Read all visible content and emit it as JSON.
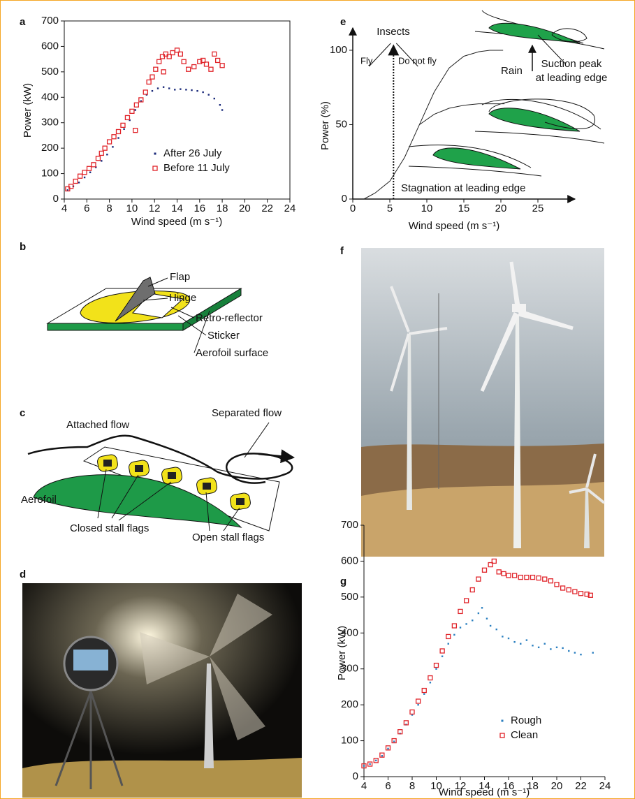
{
  "chart_data": [
    {
      "type": "scatter",
      "panel_label": "a",
      "x_label": "Wind speed (m s⁻¹)",
      "y_label": "Power (kW)",
      "xlim": [
        4,
        24
      ],
      "ylim": [
        0,
        700
      ],
      "xticks": [
        4,
        6,
        8,
        10,
        12,
        14,
        16,
        18,
        20,
        22,
        24
      ],
      "yticks": [
        0,
        100,
        200,
        300,
        400,
        500,
        600,
        700
      ],
      "series": [
        {
          "name": "After 26 July",
          "color": "#1a2a7a",
          "marker": "dot",
          "x": [
            4.3,
            4.8,
            5.3,
            5.8,
            6.3,
            6.8,
            7.3,
            7.8,
            8.3,
            8.8,
            9.3,
            9.8,
            10.3,
            10.8,
            11.3,
            11.8,
            12.3,
            12.8,
            13.3,
            13.8,
            14.3,
            14.8,
            15.3,
            15.8,
            16.3,
            16.8,
            17.3,
            17.8,
            18
          ],
          "values": [
            35,
            50,
            65,
            85,
            105,
            125,
            150,
            175,
            205,
            240,
            275,
            310,
            350,
            385,
            410,
            425,
            435,
            440,
            435,
            430,
            432,
            430,
            428,
            425,
            420,
            410,
            395,
            370,
            350
          ]
        },
        {
          "name": "Before 11 July",
          "color": "#e0242a",
          "marker": "square",
          "x": [
            4.3,
            4.6,
            5,
            5.4,
            5.8,
            6.2,
            6.6,
            7,
            7.3,
            7.6,
            8,
            8.4,
            8.8,
            9.2,
            9.6,
            10,
            10.3,
            10.4,
            10.8,
            11.2,
            11.5,
            11.8,
            12.1,
            12.4,
            12.7,
            12.8,
            13,
            13.3,
            13.6,
            14,
            14.3,
            14.6,
            15,
            15.5,
            16,
            16.3,
            16.6,
            17,
            17.3,
            17.6,
            18
          ],
          "values": [
            40,
            50,
            70,
            90,
            105,
            120,
            135,
            160,
            180,
            200,
            225,
            245,
            265,
            290,
            320,
            345,
            270,
            370,
            390,
            420,
            460,
            480,
            510,
            540,
            560,
            500,
            570,
            560,
            575,
            585,
            570,
            540,
            510,
            520,
            540,
            545,
            530,
            510,
            570,
            545,
            525
          ]
        }
      ]
    },
    {
      "type": "line",
      "panel_label": "e",
      "x_label": "Wind speed (m s⁻¹)",
      "y_label": "Power (%)",
      "xlim": [
        0,
        30
      ],
      "ylim": [
        0,
        115
      ],
      "xticks": [
        0,
        5,
        10,
        15,
        20,
        25
      ],
      "yticks": [
        0,
        50,
        100
      ],
      "series": [
        {
          "color": "#222222",
          "x": [
            1.5,
            3,
            5,
            7,
            9,
            11,
            13,
            15,
            17,
            18.5,
            20.3
          ],
          "values": [
            0,
            4,
            12,
            28,
            50,
            72,
            88,
            96,
            99,
            100,
            100
          ]
        },
        {
          "color": "#222222",
          "x": [
            9,
            11,
            13,
            15,
            17,
            19,
            20.5
          ],
          "values": [
            50,
            57,
            61,
            63,
            64,
            64,
            64
          ]
        }
      ],
      "insects_x": 5.5,
      "annotations": [
        "Insects",
        "Fly",
        "Do not fly",
        "Rain",
        "Suction peak",
        "at leading edge",
        "Stagnation at leading edge"
      ]
    },
    {
      "type": "scatter",
      "panel_label": "g",
      "x_label": "Wind speed (m s⁻¹)",
      "y_label": "Power (kW)",
      "xlim": [
        4,
        24
      ],
      "ylim": [
        0,
        700
      ],
      "xticks": [
        4,
        6,
        8,
        10,
        12,
        14,
        16,
        18,
        20,
        22,
        24
      ],
      "yticks": [
        0,
        100,
        200,
        300,
        400,
        500,
        600,
        700
      ],
      "series": [
        {
          "name": "Rough",
          "color": "#2a7fc0",
          "marker": "dot",
          "x": [
            4,
            4.5,
            5,
            5.5,
            6,
            6.5,
            7,
            7.5,
            8,
            8.5,
            9,
            9.5,
            10,
            10.5,
            11,
            11.5,
            12,
            12.5,
            13,
            13.5,
            13.8,
            14.2,
            14.5,
            15,
            15.5,
            16,
            16.5,
            17,
            17.5,
            18,
            18.5,
            19,
            19.5,
            20,
            20.5,
            21,
            21.5,
            22,
            23
          ],
          "values": [
            30,
            35,
            45,
            58,
            78,
            98,
            120,
            145,
            172,
            200,
            230,
            262,
            300,
            335,
            370,
            395,
            415,
            425,
            435,
            455,
            470,
            440,
            420,
            410,
            390,
            385,
            375,
            370,
            380,
            365,
            360,
            370,
            355,
            360,
            358,
            350,
            345,
            340,
            345
          ]
        },
        {
          "name": "Clean",
          "color": "#e0242a",
          "marker": "square",
          "x": [
            4,
            4.5,
            5,
            5.5,
            6,
            6.5,
            7,
            7.5,
            8,
            8.5,
            9,
            9.5,
            10,
            10.5,
            11,
            11.5,
            12,
            12.5,
            13,
            13.5,
            14,
            14.5,
            14.8,
            15.2,
            15.6,
            16,
            16.5,
            17,
            17.5,
            18,
            18.5,
            19,
            19.5,
            20,
            20.5,
            21,
            21.5,
            22,
            22.5,
            22.8
          ],
          "values": [
            30,
            35,
            45,
            60,
            80,
            100,
            125,
            150,
            180,
            210,
            240,
            275,
            310,
            350,
            390,
            420,
            460,
            490,
            520,
            550,
            575,
            590,
            600,
            570,
            565,
            560,
            560,
            555,
            555,
            555,
            553,
            550,
            545,
            535,
            525,
            520,
            515,
            510,
            508,
            505
          ]
        }
      ]
    }
  ],
  "panels": {
    "b": {
      "label": "b",
      "flap": "Flap",
      "hinge": "Hinge",
      "retro_reflector": "Retro-reflector",
      "sticker": "Sticker",
      "surface": "Aerofoil surface"
    },
    "c": {
      "label": "c",
      "attached": "Attached flow",
      "separated": "Separated flow",
      "aerofoil": "Aerofoil",
      "closed": "Closed stall flags",
      "open": "Open stall flags"
    },
    "d": {
      "label": "d"
    },
    "f": {
      "label": "f"
    }
  }
}
